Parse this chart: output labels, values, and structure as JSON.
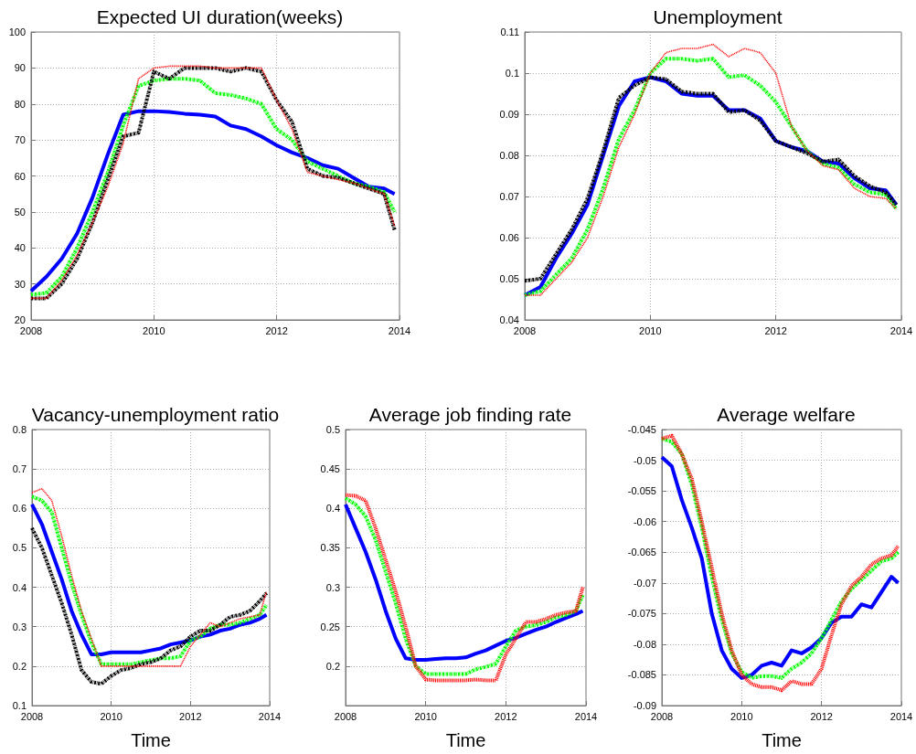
{
  "chart_data": [
    {
      "type": "line",
      "title": "Expected UI duration(weeks)",
      "grid": true,
      "marker": "none",
      "x": [
        2008,
        2008.25,
        2008.5,
        2008.75,
        2009,
        2009.25,
        2009.5,
        2009.75,
        2010,
        2010.25,
        2010.5,
        2010.75,
        2011,
        2011.25,
        2011.5,
        2011.75,
        2012,
        2012.25,
        2012.5,
        2012.75,
        2013,
        2013.25,
        2013.5,
        2013.75,
        2013.92
      ],
      "xlim": [
        2008,
        2014
      ],
      "xticks": [
        2008,
        2010,
        2012,
        2014
      ],
      "ylim": [
        20,
        100
      ],
      "yticks": [
        20,
        30,
        40,
        50,
        60,
        70,
        80,
        90,
        100
      ],
      "series": [
        {
          "color": "#ff0000",
          "line_style": "dotted",
          "values": [
            26,
            26,
            31,
            38,
            47,
            57,
            69,
            87,
            90,
            90.5,
            90.5,
            90.5,
            90,
            90,
            90,
            90,
            81,
            73,
            61,
            60,
            59,
            58,
            56.5,
            55,
            46
          ]
        },
        {
          "color": "#00ff00",
          "line_style": "dashed",
          "values": [
            27,
            27.5,
            32,
            40,
            50,
            61,
            74,
            85,
            86.5,
            87,
            87,
            86.5,
            83,
            82.5,
            81.5,
            80,
            73,
            70,
            64,
            62,
            60,
            58,
            57,
            55.5,
            50
          ]
        },
        {
          "color": "#000000",
          "line_style": "dashed",
          "values": [
            26,
            26,
            30,
            37,
            47,
            59,
            71,
            72,
            89,
            87,
            90,
            90,
            90,
            89,
            90,
            89,
            81,
            75,
            62,
            60,
            59.5,
            58,
            56.5,
            55,
            45
          ]
        },
        {
          "color": "#0000ff",
          "line_style": "solid",
          "values": [
            28,
            32,
            37,
            44,
            54,
            66,
            77,
            78,
            78,
            77.8,
            77.3,
            77,
            76.5,
            74,
            73,
            71,
            68.5,
            66.5,
            65,
            63,
            62,
            59.5,
            57,
            56.5,
            55
          ]
        }
      ]
    },
    {
      "type": "line",
      "title": "Unemployment",
      "grid": true,
      "marker": "none",
      "x": [
        2008,
        2008.25,
        2008.5,
        2008.75,
        2009,
        2009.25,
        2009.5,
        2009.75,
        2010,
        2010.25,
        2010.5,
        2010.75,
        2011,
        2011.25,
        2011.5,
        2011.75,
        2012,
        2012.25,
        2012.5,
        2012.75,
        2013,
        2013.25,
        2013.5,
        2013.75,
        2013.92
      ],
      "xlim": [
        2008,
        2014
      ],
      "xticks": [
        2008,
        2010,
        2012,
        2014
      ],
      "ylim": [
        0.04,
        0.11
      ],
      "yticks": [
        0.04,
        0.05,
        0.06,
        0.07,
        0.08,
        0.09,
        0.1,
        0.11
      ],
      "series": [
        {
          "color": "#ff0000",
          "line_style": "dotted",
          "values": [
            0.046,
            0.046,
            0.05,
            0.054,
            0.06,
            0.07,
            0.082,
            0.09,
            0.1,
            0.105,
            0.106,
            0.106,
            0.107,
            0.104,
            0.106,
            0.105,
            0.1,
            0.087,
            0.081,
            0.0775,
            0.0765,
            0.072,
            0.07,
            0.0695,
            0.067
          ]
        },
        {
          "color": "#00ff00",
          "line_style": "dashed",
          "values": [
            0.046,
            0.047,
            0.051,
            0.055,
            0.062,
            0.072,
            0.084,
            0.091,
            0.1,
            0.1035,
            0.1035,
            0.103,
            0.1035,
            0.099,
            0.0995,
            0.097,
            0.093,
            0.087,
            0.081,
            0.078,
            0.077,
            0.073,
            0.071,
            0.0705,
            0.067
          ]
        },
        {
          "color": "#000000",
          "line_style": "dashed",
          "values": [
            0.0495,
            0.05,
            0.056,
            0.062,
            0.0695,
            0.081,
            0.094,
            0.097,
            0.099,
            0.0985,
            0.0955,
            0.095,
            0.095,
            0.0905,
            0.091,
            0.0885,
            0.0835,
            0.082,
            0.0805,
            0.0785,
            0.079,
            0.075,
            0.0725,
            0.071,
            0.068
          ]
        },
        {
          "color": "#0000ff",
          "line_style": "solid",
          "values": [
            0.046,
            0.048,
            0.055,
            0.061,
            0.068,
            0.08,
            0.092,
            0.098,
            0.099,
            0.098,
            0.095,
            0.0945,
            0.0945,
            0.091,
            0.091,
            0.089,
            0.0835,
            0.082,
            0.081,
            0.0785,
            0.078,
            0.0745,
            0.072,
            0.0715,
            0.068
          ]
        }
      ]
    },
    {
      "type": "line",
      "title": "Vacancy-unemployment ratio",
      "xlabel": "Time",
      "grid": true,
      "marker": "none",
      "x": [
        2008,
        2008.25,
        2008.5,
        2008.75,
        2009,
        2009.25,
        2009.5,
        2009.75,
        2010,
        2010.25,
        2010.5,
        2010.75,
        2011,
        2011.25,
        2011.5,
        2011.75,
        2012,
        2012.25,
        2012.5,
        2012.75,
        2013,
        2013.25,
        2013.5,
        2013.75,
        2013.92
      ],
      "xlim": [
        2008,
        2014
      ],
      "xticks": [
        2008,
        2010,
        2012,
        2014
      ],
      "ylim": [
        0.1,
        0.8
      ],
      "yticks": [
        0.1,
        0.2,
        0.3,
        0.4,
        0.5,
        0.6,
        0.7,
        0.8
      ],
      "series": [
        {
          "color": "#ff0000",
          "line_style": "dotted",
          "values": [
            0.64,
            0.65,
            0.62,
            0.53,
            0.43,
            0.34,
            0.27,
            0.2,
            0.2,
            0.2,
            0.2,
            0.2,
            0.2,
            0.2,
            0.2,
            0.2,
            0.25,
            0.28,
            0.31,
            0.3,
            0.31,
            0.32,
            0.325,
            0.33,
            0.39
          ]
        },
        {
          "color": "#00ff00",
          "line_style": "dashed",
          "values": [
            0.63,
            0.62,
            0.59,
            0.5,
            0.41,
            0.33,
            0.26,
            0.205,
            0.205,
            0.205,
            0.205,
            0.21,
            0.215,
            0.22,
            0.22,
            0.225,
            0.265,
            0.275,
            0.295,
            0.305,
            0.305,
            0.31,
            0.32,
            0.33,
            0.355
          ]
        },
        {
          "color": "#000000",
          "line_style": "dashed",
          "values": [
            0.55,
            0.5,
            0.43,
            0.36,
            0.28,
            0.19,
            0.16,
            0.155,
            0.175,
            0.19,
            0.195,
            0.205,
            0.21,
            0.22,
            0.24,
            0.25,
            0.275,
            0.29,
            0.29,
            0.305,
            0.325,
            0.33,
            0.34,
            0.365,
            0.385
          ]
        },
        {
          "color": "#0000ff",
          "line_style": "solid",
          "values": [
            0.61,
            0.56,
            0.49,
            0.42,
            0.34,
            0.28,
            0.23,
            0.23,
            0.235,
            0.235,
            0.235,
            0.235,
            0.24,
            0.245,
            0.255,
            0.26,
            0.265,
            0.275,
            0.28,
            0.29,
            0.295,
            0.305,
            0.31,
            0.32,
            0.33
          ]
        }
      ]
    },
    {
      "type": "line",
      "title": "Average job finding rate",
      "xlabel": "Time",
      "grid": true,
      "marker": "none",
      "x": [
        2008,
        2008.25,
        2008.5,
        2008.75,
        2009,
        2009.25,
        2009.5,
        2009.75,
        2010,
        2010.25,
        2010.5,
        2010.75,
        2011,
        2011.25,
        2011.5,
        2011.75,
        2012,
        2012.25,
        2012.5,
        2012.75,
        2013,
        2013.25,
        2013.5,
        2013.75,
        2013.92
      ],
      "xlim": [
        2008,
        2014
      ],
      "xticks": [
        2008,
        2010,
        2012,
        2014
      ],
      "ylim": [
        0.15,
        0.5
      ],
      "yticks": [
        0.2,
        0.25,
        0.3,
        0.35,
        0.4,
        0.45,
        0.5
      ],
      "series": [
        {
          "color": "#ff0000",
          "line_style": "dotted",
          "values": [
            0.417,
            0.416,
            0.41,
            0.375,
            0.335,
            0.295,
            0.25,
            0.2,
            0.183,
            0.182,
            0.182,
            0.182,
            0.182,
            0.183,
            0.182,
            0.182,
            0.215,
            0.235,
            0.256,
            0.256,
            0.26,
            0.265,
            0.268,
            0.27,
            0.3
          ]
        },
        {
          "color": "#00ff00",
          "line_style": "dashed",
          "values": [
            0.413,
            0.405,
            0.39,
            0.36,
            0.32,
            0.28,
            0.235,
            0.2,
            0.19,
            0.19,
            0.19,
            0.19,
            0.19,
            0.196,
            0.199,
            0.203,
            0.225,
            0.245,
            0.25,
            0.252,
            0.256,
            0.262,
            0.265,
            0.27,
            0.29
          ]
        },
        {
          "color": "#0000ff",
          "line_style": "solid",
          "values": [
            0.405,
            0.375,
            0.345,
            0.31,
            0.27,
            0.235,
            0.21,
            0.208,
            0.208,
            0.209,
            0.21,
            0.21,
            0.211,
            0.216,
            0.22,
            0.226,
            0.232,
            0.236,
            0.241,
            0.246,
            0.25,
            0.256,
            0.261,
            0.266,
            0.27
          ]
        }
      ]
    },
    {
      "type": "line",
      "title": "Average welfare",
      "xlabel": "Time",
      "grid": true,
      "marker": "none",
      "x": [
        2008,
        2008.25,
        2008.5,
        2008.75,
        2009,
        2009.25,
        2009.5,
        2009.75,
        2010,
        2010.25,
        2010.5,
        2010.75,
        2011,
        2011.25,
        2011.5,
        2011.75,
        2012,
        2012.25,
        2012.5,
        2012.75,
        2013,
        2013.25,
        2013.5,
        2013.75,
        2013.92
      ],
      "xlim": [
        2008,
        2014
      ],
      "xticks": [
        2008,
        2010,
        2012,
        2014
      ],
      "ylim": [
        -0.09,
        -0.045
      ],
      "yticks": [
        -0.09,
        -0.085,
        -0.08,
        -0.075,
        -0.07,
        -0.065,
        -0.06,
        -0.055,
        -0.05,
        -0.045
      ],
      "series": [
        {
          "color": "#ff0000",
          "line_style": "dotted",
          "values": [
            -0.0465,
            -0.046,
            -0.049,
            -0.053,
            -0.06,
            -0.0675,
            -0.075,
            -0.081,
            -0.085,
            -0.0865,
            -0.087,
            -0.087,
            -0.0875,
            -0.086,
            -0.0865,
            -0.0865,
            -0.084,
            -0.0785,
            -0.0735,
            -0.0705,
            -0.069,
            -0.067,
            -0.066,
            -0.0655,
            -0.064
          ]
        },
        {
          "color": "#00ff00",
          "line_style": "dashed",
          "values": [
            -0.0465,
            -0.047,
            -0.049,
            -0.054,
            -0.061,
            -0.069,
            -0.076,
            -0.0815,
            -0.0845,
            -0.0855,
            -0.0852,
            -0.0852,
            -0.0855,
            -0.084,
            -0.083,
            -0.0815,
            -0.079,
            -0.076,
            -0.073,
            -0.071,
            -0.0695,
            -0.068,
            -0.0665,
            -0.066,
            -0.065
          ]
        },
        {
          "color": "#0000ff",
          "line_style": "solid",
          "values": [
            -0.0495,
            -0.051,
            -0.0565,
            -0.061,
            -0.066,
            -0.075,
            -0.081,
            -0.084,
            -0.0855,
            -0.085,
            -0.0835,
            -0.083,
            -0.0835,
            -0.081,
            -0.0815,
            -0.0805,
            -0.079,
            -0.0765,
            -0.0755,
            -0.0755,
            -0.0735,
            -0.074,
            -0.0715,
            -0.069,
            -0.07
          ]
        }
      ]
    }
  ]
}
